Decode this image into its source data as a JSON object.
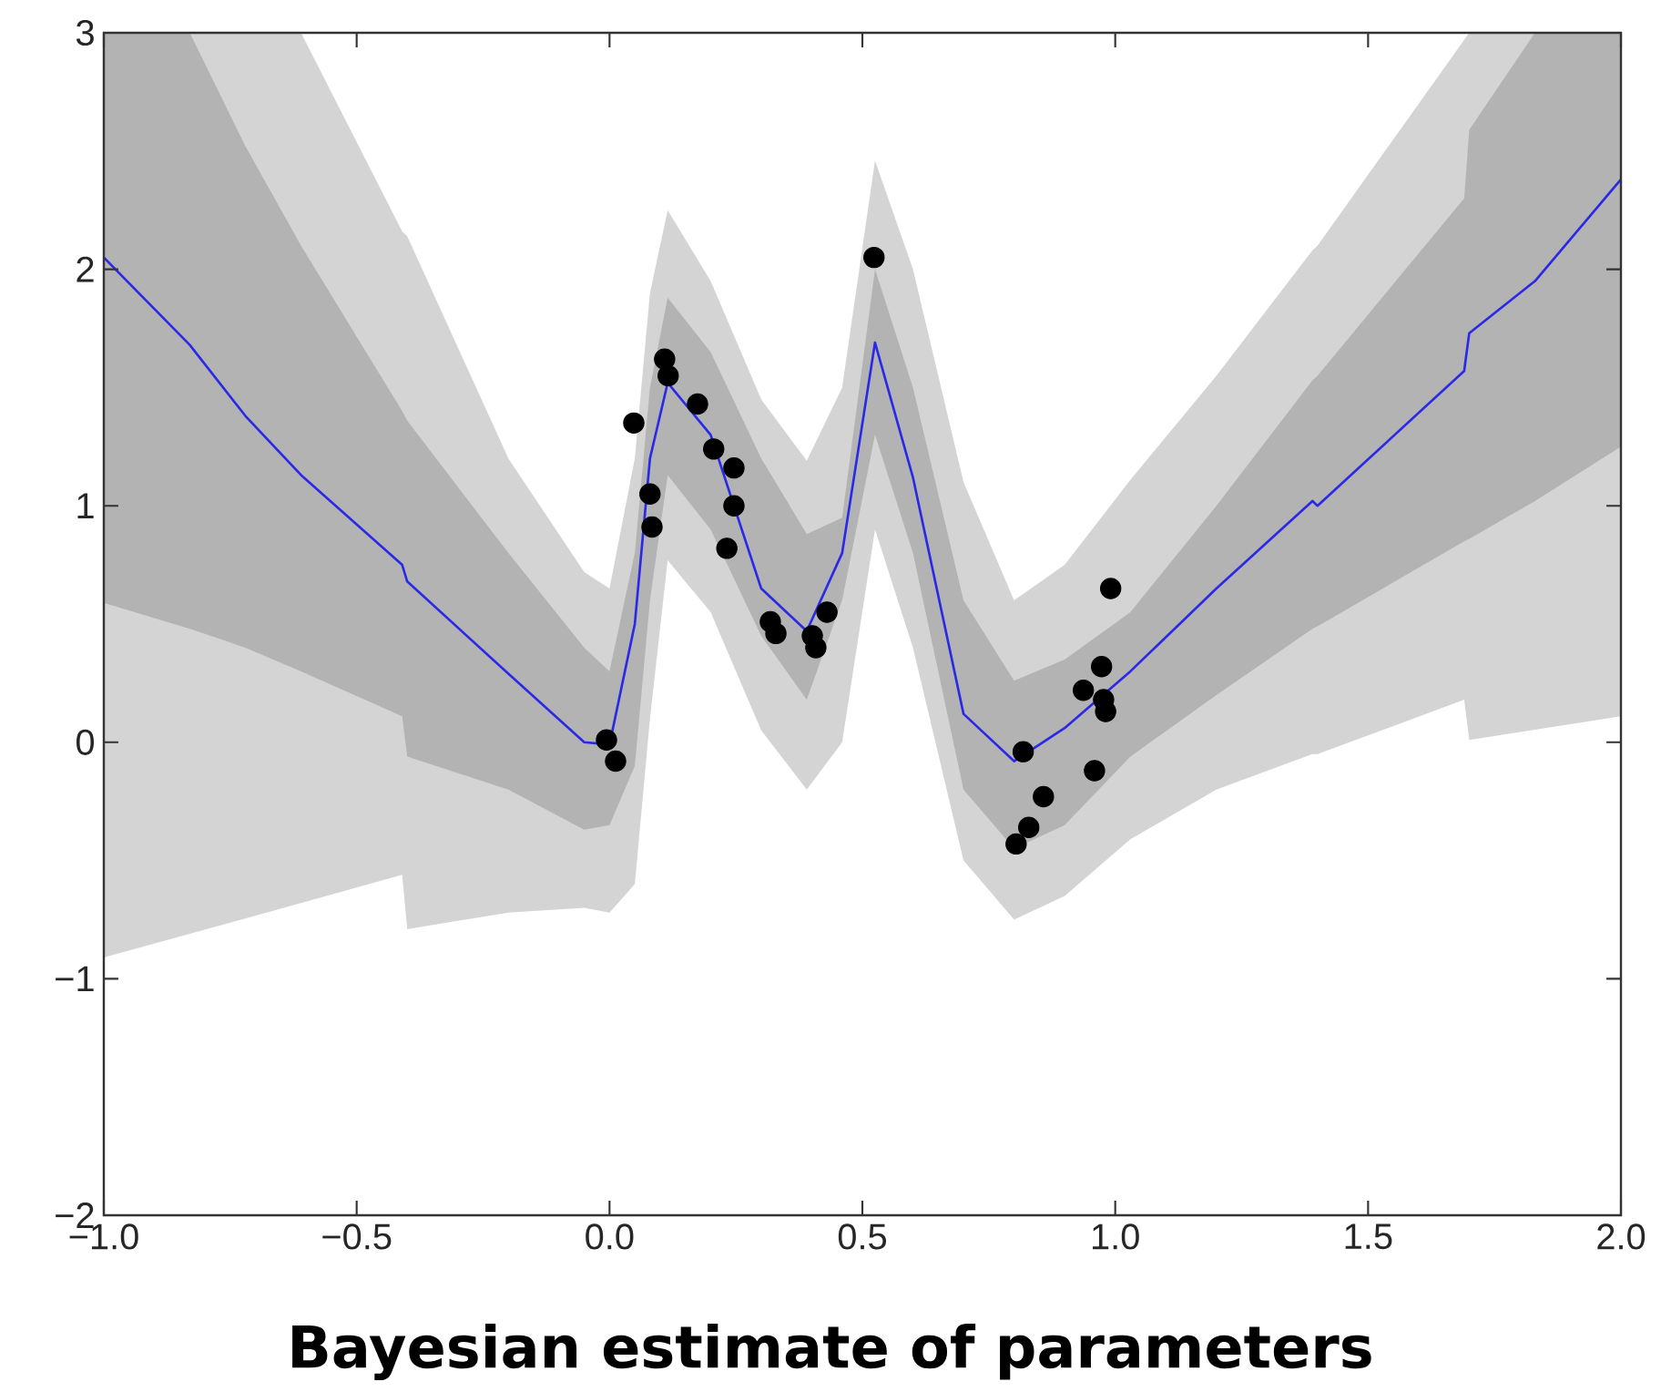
{
  "chart_data": {
    "type": "line",
    "title": "**Bayesian estimate of parameters**",
    "xlim": [
      -1,
      2
    ],
    "ylim": [
      -2,
      3
    ],
    "xticks": [
      {
        "value": -1,
        "label": "−1.0"
      },
      {
        "value": -0.5,
        "label": "−0.5"
      },
      {
        "value": 0,
        "label": "0.0"
      },
      {
        "value": 0.5,
        "label": "0.5"
      },
      {
        "value": 1,
        "label": "1.0"
      },
      {
        "value": 1.5,
        "label": "1.5"
      },
      {
        "value": 2,
        "label": "2.0"
      }
    ],
    "yticks": [
      {
        "value": -2,
        "label": "−2"
      },
      {
        "value": -1,
        "label": "−1"
      },
      0,
      1,
      2,
      3
    ],
    "x": [
      -1,
      -0.83,
      -0.72,
      -0.61,
      -0.41,
      -0.4,
      -0.2,
      -0.05,
      0,
      0.05,
      0.08,
      0.115,
      0.2,
      0.3,
      0.39,
      0.46,
      0.525,
      0.6,
      0.7,
      0.8,
      0.9,
      1.03,
      1.2,
      1.39,
      1.4,
      1.69,
      1.7,
      1.83,
      2.0
    ],
    "series": [
      {
        "type": "line",
        "color": "#d4d4d4",
        "x": [
          -1,
          -0.61,
          -0.41,
          -0.4,
          -0.2,
          -0.05,
          0,
          0.05,
          0.08,
          0.115,
          0.2,
          0.3,
          0.39,
          0.46,
          0.525,
          0.6,
          0.7,
          0.8,
          0.9,
          1.03,
          1.2,
          1.39,
          1.4,
          1.69,
          1.7,
          2.0
        ],
        "values": [
          null,
          null,
          null,
          null,
          null,
          null,
          null,
          null,
          null,
          null,
          null,
          null,
          null,
          null,
          null,
          null,
          null,
          null,
          null,
          null,
          null,
          null,
          null,
          null,
          null,
          null
        ],
        "upper": [
          3,
          3,
          2.16,
          2.14,
          1.2,
          0.72,
          0.65,
          1.2,
          1.9,
          2.25,
          1.95,
          1.45,
          1.19,
          1.5,
          2.46,
          2.0,
          1.1,
          0.6,
          0.75,
          1.11,
          1.55,
          2.08,
          2.1,
          2.97,
          3,
          3
        ],
        "lower": [
          -0.91,
          -0.68,
          -0.56,
          -0.79,
          -0.72,
          -0.7,
          -0.72,
          -0.6,
          0.1,
          0.77,
          0.55,
          0.05,
          -0.2,
          0.0,
          0.9,
          0.4,
          -0.5,
          -0.75,
          -0.65,
          -0.41,
          -0.2,
          -0.05,
          -0.05,
          0.18,
          0.01,
          0.11
        ]
      },
      {
        "type": "line",
        "color": "#b3b3b3",
        "values": [
          null,
          null,
          null,
          null,
          null,
          null,
          null,
          null,
          null,
          null,
          null,
          null,
          null,
          null,
          null,
          null,
          null,
          null,
          null,
          null,
          null,
          null,
          null,
          null,
          null,
          null,
          null,
          null,
          null
        ],
        "upper": [
          3,
          3,
          2.52,
          2.1,
          1.4,
          1.36,
          0.8,
          0.4,
          0.3,
          0.8,
          1.5,
          1.88,
          1.65,
          1.2,
          0.88,
          0.95,
          2.0,
          1.5,
          0.6,
          0.26,
          0.35,
          0.55,
          1.0,
          1.53,
          1.55,
          2.3,
          2.59,
          3,
          3
        ],
        "lower": [
          0.59,
          0.48,
          0.4,
          0.3,
          0.11,
          -0.06,
          -0.2,
          -0.37,
          -0.35,
          -0.1,
          0.6,
          1.13,
          0.9,
          0.45,
          0.18,
          0.6,
          1.3,
          0.8,
          -0.2,
          -0.45,
          -0.35,
          -0.06,
          0.2,
          0.48,
          0.49,
          0.85,
          0.86,
          1.02,
          1.25
        ]
      },
      {
        "color": "#2a2ae6",
        "values": [
          2.05,
          1.68,
          1.38,
          1.13,
          0.75,
          0.68,
          0.29,
          0.0,
          -0.01,
          0.5,
          1.2,
          1.52,
          1.3,
          0.65,
          0.47,
          0.8,
          1.69,
          1.12,
          0.12,
          -0.08,
          0.06,
          0.3,
          0.65,
          1.02,
          1.0,
          1.57,
          1.73,
          1.95,
          2.38
        ]
      },
      {
        "type": "scatter",
        "color": "#000000",
        "marker": "circle",
        "x": [
          0.109,
          0.116,
          0.048,
          0.174,
          0.206,
          0.246,
          0.08,
          0.246,
          0.084,
          0.232,
          0.318,
          0.329,
          0.43,
          0.401,
          0.408,
          0.523,
          -0.006,
          0.012,
          0.991,
          0.973,
          0.937,
          0.977,
          0.981,
          0.818,
          0.959,
          0.858,
          0.829,
          0.804
        ],
        "values": [
          1.62,
          1.55,
          1.35,
          1.43,
          1.24,
          1.16,
          1.05,
          1.0,
          0.91,
          0.82,
          0.51,
          0.46,
          0.55,
          0.45,
          0.4,
          2.05,
          0.01,
          -0.08,
          0.65,
          0.32,
          0.22,
          0.18,
          0.13,
          -0.04,
          -0.12,
          -0.23,
          -0.36,
          -0.43
        ]
      }
    ]
  }
}
